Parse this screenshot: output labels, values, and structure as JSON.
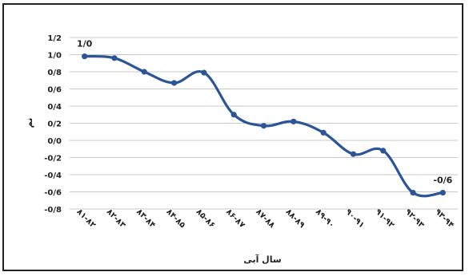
{
  "chart_data": {
    "type": "line",
    "title": "",
    "xlabel": "سال آبی",
    "ylabel": "نم",
    "categories": [
      "۸۱-۸۲",
      "۸۲-۸۳",
      "۸۳-۸۴",
      "۸۴-۸۵",
      "۸۵-۸۶",
      "۸۶-۸۷",
      "۸۷-۸۸",
      "۸۸-۸۹",
      "۸۹-۹۰",
      "۹۰-۹۱",
      "۹۱-۹۲",
      "۹۲-۹۳",
      "۹۳-۹۴"
    ],
    "series": [
      {
        "values": [
          0.98,
          0.96,
          0.8,
          0.67,
          0.79,
          0.3,
          0.17,
          0.22,
          0.09,
          -0.16,
          -0.12,
          -0.61,
          -0.61
        ]
      }
    ],
    "ylim": [
      -0.8,
      1.2
    ],
    "yticks": [
      "1/2",
      "1/0",
      "0/8",
      "0/6",
      "0/4",
      "0/2",
      "0/0",
      "-0/2",
      "-0/4",
      "-0/6",
      "-0/8"
    ],
    "ytick_values": [
      1.2,
      1.0,
      0.8,
      0.6,
      0.4,
      0.2,
      0.0,
      -0.2,
      -0.4,
      -0.6,
      -0.8
    ],
    "data_labels": [
      {
        "index": 0,
        "text": "1/0"
      },
      {
        "index": 12,
        "text": "-0/6"
      }
    ],
    "grid": true,
    "legend": "none",
    "line_color": "#2c5597"
  }
}
